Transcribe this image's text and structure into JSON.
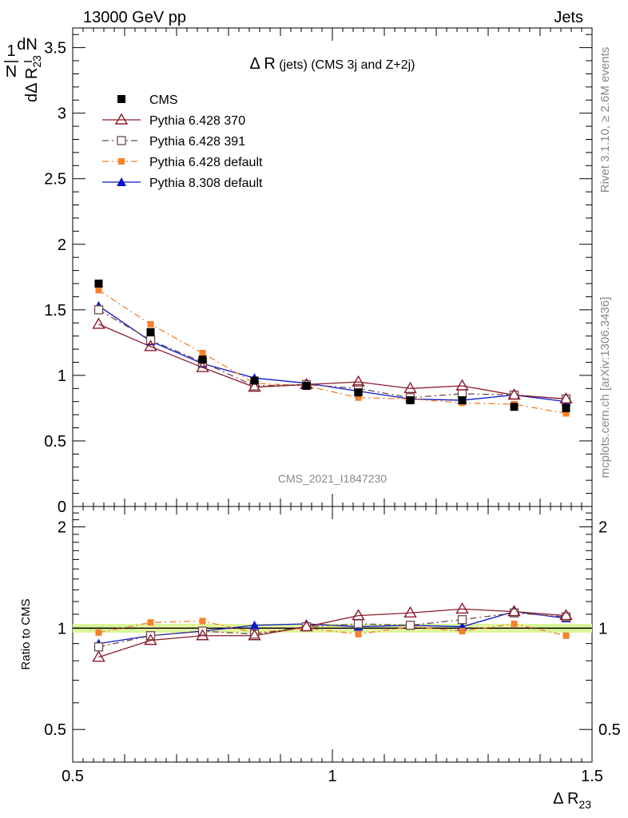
{
  "header": {
    "left": "13000 GeV pp",
    "right": "Jets"
  },
  "side_labels": {
    "top": "Rivet 3.1.10, ≥ 2.6M events",
    "bottom": "mcplots.cern.ch [arXiv:1306.3436]"
  },
  "chart_data": [
    {
      "type": "scatter",
      "title": "Δ R (jets) (CMS 3j and Z+2j)",
      "title_parts": {
        "main": "Δ R",
        "suffix": " (jets) (CMS 3j and Z+2j)"
      },
      "ylabel": "1/N dN/dΔ R23",
      "ylabel_parts": {
        "one": "1",
        "dN": "dN",
        "N": "N",
        "dDR": "dΔ R",
        "sub": "23"
      },
      "xlim": [
        0.5,
        1.5
      ],
      "ylim": [
        0,
        3.65
      ],
      "yticks": [
        "0",
        "0.5",
        "1",
        "1.5",
        "2",
        "2.5",
        "3",
        "3.5"
      ],
      "watermark": "CMS_2021_I1847230",
      "legend_position": "top-left",
      "x": [
        0.55,
        0.65,
        0.75,
        0.85,
        0.95,
        1.05,
        1.15,
        1.25,
        1.35,
        1.45
      ],
      "series": [
        {
          "name": "CMS",
          "color": "#000000",
          "marker": "square-filled",
          "line": "none",
          "values": [
            1.7,
            1.33,
            1.12,
            0.96,
            0.92,
            0.87,
            0.81,
            0.81,
            0.76,
            0.75
          ]
        },
        {
          "name": "Pythia 6.428 370",
          "color": "#8b1a2b",
          "marker": "triangle-open",
          "line": "solid",
          "values": [
            1.39,
            1.22,
            1.06,
            0.91,
            0.93,
            0.95,
            0.9,
            0.92,
            0.85,
            0.82
          ]
        },
        {
          "name": "Pythia 6.428 391",
          "color": "#6e4a4a",
          "marker": "square-open",
          "line": "dashdot",
          "values": [
            1.5,
            1.27,
            1.1,
            0.92,
            0.93,
            0.9,
            0.83,
            0.86,
            0.85,
            0.82
          ]
        },
        {
          "name": "Pythia 6.428 default",
          "color": "#f5822a",
          "marker": "square-small-filled",
          "line": "dashdot",
          "values": [
            1.65,
            1.39,
            1.17,
            0.94,
            0.92,
            0.83,
            0.82,
            0.79,
            0.78,
            0.71
          ]
        },
        {
          "name": "Pythia 8.308 default",
          "color": "#0b16c9",
          "marker": "triangle-filled",
          "line": "solid",
          "values": [
            1.53,
            1.26,
            1.09,
            0.98,
            0.94,
            0.88,
            0.82,
            0.81,
            0.85,
            0.8
          ]
        }
      ]
    },
    {
      "type": "scatter",
      "ylabel": "Ratio to CMS",
      "xlabel": "Δ R23",
      "xlabel_parts": {
        "main": "Δ R",
        "sub": "23"
      },
      "xlim": [
        0.5,
        1.5
      ],
      "ylim": [
        0.4,
        2.3
      ],
      "yscale": "log",
      "yticks": [
        "0.5",
        "1",
        "2"
      ],
      "xticks": [
        "0.5",
        "1",
        "1.5"
      ],
      "band": [
        0.97,
        1.03
      ],
      "x": [
        0.55,
        0.65,
        0.75,
        0.85,
        0.95,
        1.05,
        1.15,
        1.25,
        1.35,
        1.45
      ],
      "series": [
        {
          "name": "Pythia 6.428 370",
          "color": "#8b1a2b",
          "marker": "triangle-open",
          "line": "solid",
          "values": [
            0.82,
            0.92,
            0.95,
            0.95,
            1.01,
            1.09,
            1.11,
            1.14,
            1.12,
            1.09
          ]
        },
        {
          "name": "Pythia 6.428 391",
          "color": "#6e4a4a",
          "marker": "square-open",
          "line": "dashdot",
          "values": [
            0.88,
            0.95,
            0.98,
            0.96,
            1.01,
            1.03,
            1.02,
            1.06,
            1.11,
            1.08
          ]
        },
        {
          "name": "Pythia 6.428 default",
          "color": "#f5822a",
          "marker": "square-small-filled",
          "line": "dashdot",
          "values": [
            0.97,
            1.04,
            1.05,
            0.97,
            1.0,
            0.96,
            1.01,
            0.98,
            1.03,
            0.95
          ]
        },
        {
          "name": "Pythia 8.308 default",
          "color": "#0b16c9",
          "marker": "triangle-filled",
          "line": "solid",
          "values": [
            0.9,
            0.95,
            0.98,
            1.02,
            1.03,
            1.01,
            1.02,
            1.01,
            1.12,
            1.07
          ]
        }
      ]
    }
  ]
}
